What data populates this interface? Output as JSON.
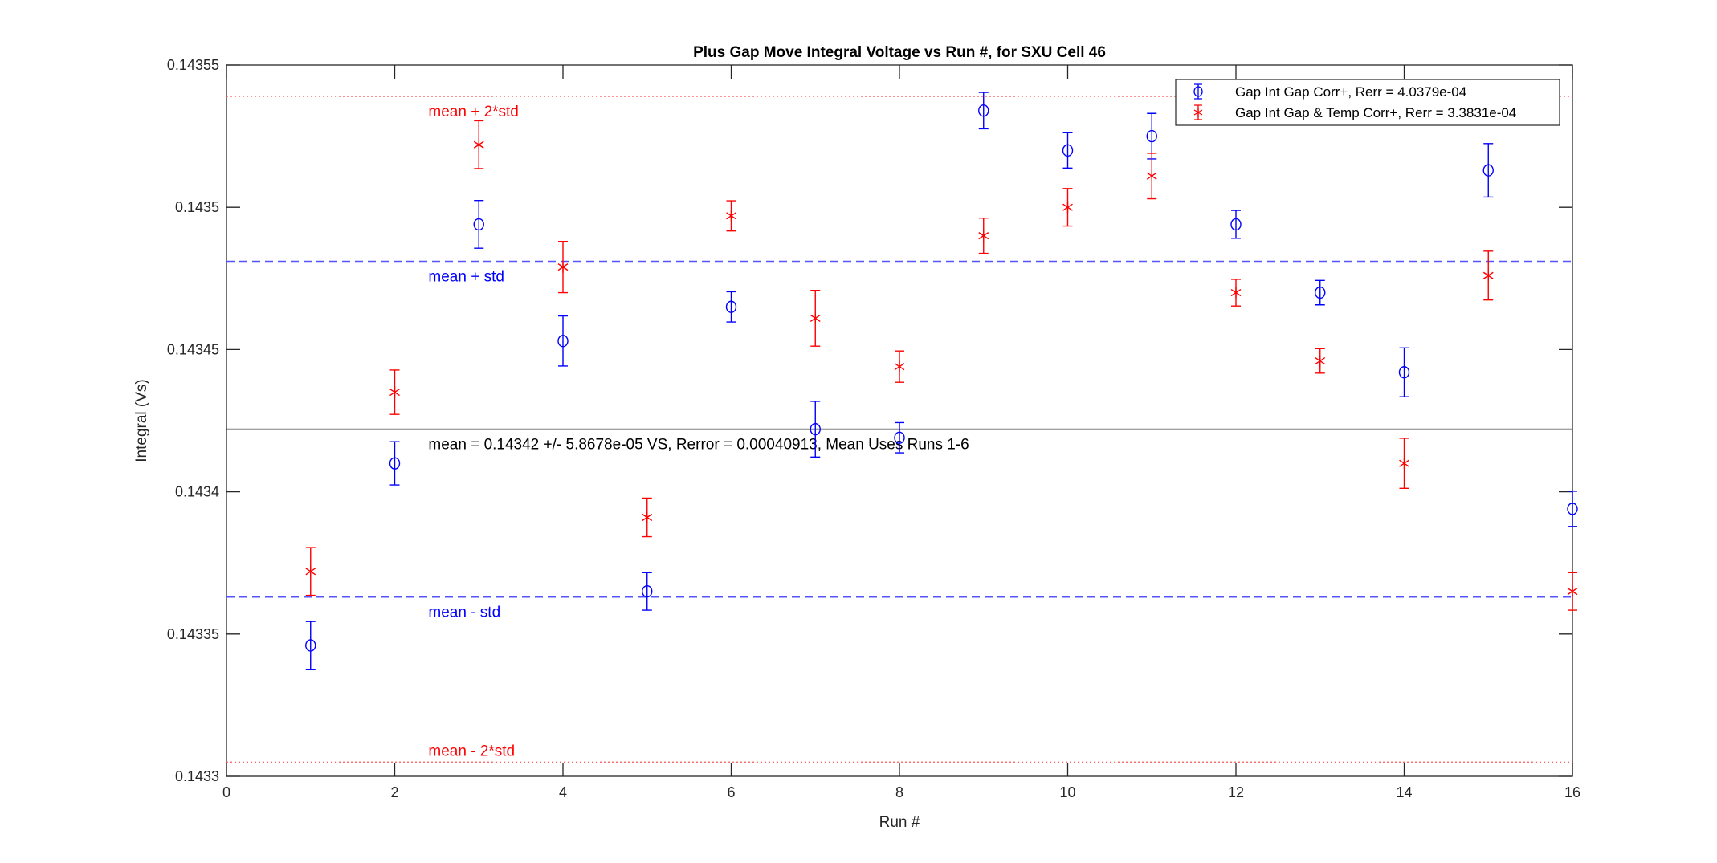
{
  "chart_data": {
    "type": "scatter",
    "title": "Plus Gap Move Integral Voltage vs Run #, for SXU Cell 46",
    "xlabel": "Run #",
    "ylabel": "Integral (Vs)",
    "xlim": [
      0,
      16
    ],
    "ylim": [
      0.1433,
      0.14355
    ],
    "xticks": [
      "0",
      "2",
      "4",
      "6",
      "8",
      "10",
      "12",
      "14",
      "16"
    ],
    "yticks": [
      "0.1433",
      "0.14335",
      "0.1434",
      "0.14345",
      "0.1435",
      "0.14355"
    ],
    "grid": false,
    "legend_position": "top-right",
    "series": [
      {
        "name": "Gap Int Gap Corr+, Rerr = 4.0379e-04",
        "color": "#0000ff",
        "marker": "circle",
        "x": [
          1,
          2,
          3,
          4,
          5,
          6,
          7,
          8,
          9,
          10,
          11,
          12,
          13,
          14,
          15,
          16
        ],
        "y": [
          0.143346,
          0.14341,
          0.143494,
          0.143453,
          0.143365,
          0.143465,
          0.143422,
          0.143419,
          0.143534,
          0.14352,
          0.143525,
          0.143494,
          0.14347,
          0.143442,
          0.143513,
          0.143394
        ],
        "err": [
          8.4e-06,
          7.6e-06,
          8.4e-06,
          8.8e-06,
          6.6e-06,
          5.3e-06,
          9.8e-06,
          5.3e-06,
          6.4e-06,
          6.2e-06,
          8e-06,
          4.9e-06,
          4.3e-06,
          8.6e-06,
          9.4e-06,
          6.2e-06
        ]
      },
      {
        "name": "Gap Int Gap & Temp  Corr+, Rerr = 3.3831e-04",
        "color": "#ff0000",
        "marker": "asterisk",
        "x": [
          1,
          2,
          3,
          4,
          5,
          6,
          7,
          8,
          9,
          10,
          11,
          12,
          13,
          14,
          15,
          16
        ],
        "y": [
          0.143372,
          0.143435,
          0.143522,
          0.143479,
          0.143391,
          0.143497,
          0.143461,
          0.143444,
          0.14349,
          0.1435,
          0.143511,
          0.14347,
          0.143446,
          0.14341,
          0.143476,
          0.143365
        ],
        "err": [
          8.4e-06,
          7.8e-06,
          8.4e-06,
          9e-06,
          6.8e-06,
          5.3e-06,
          9.8e-06,
          5.5e-06,
          6.2e-06,
          6.6e-06,
          8e-06,
          4.7e-06,
          4.3e-06,
          8.8e-06,
          8.6e-06,
          6.6e-06
        ]
      }
    ],
    "reference_lines": [
      {
        "label": "mean + 2*std",
        "y": 0.143539,
        "color": "#ff0000",
        "style": "dotted"
      },
      {
        "label": "mean + std",
        "y": 0.143481,
        "color": "#0000ff",
        "style": "dashed"
      },
      {
        "label": "mean = 0.14342 +/- 5.8678e-05 VS, Rerror = 0.00040913, Mean Uses Runs 1-6",
        "y": 0.143422,
        "color": "#000000",
        "style": "solid"
      },
      {
        "label": "mean - std",
        "y": 0.143363,
        "color": "#0000ff",
        "style": "dashed"
      },
      {
        "label": "mean - 2*std",
        "y": 0.143305,
        "color": "#ff0000",
        "style": "dotted"
      }
    ]
  }
}
